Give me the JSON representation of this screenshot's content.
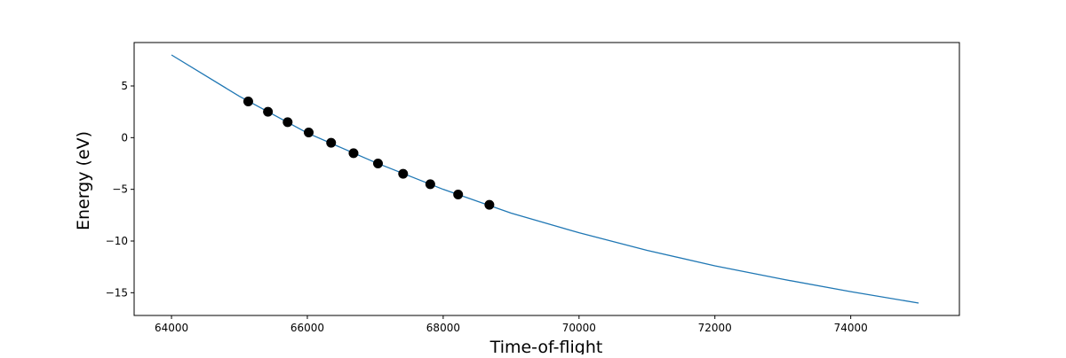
{
  "chart_data": {
    "type": "scatter",
    "title": "",
    "xlabel": "Time-of-flight",
    "ylabel": "Energy (eV)",
    "xlim": [
      63450,
      75600
    ],
    "ylim": [
      -17.2,
      9.2
    ],
    "xticks": [
      64000,
      66000,
      68000,
      70000,
      72000,
      74000
    ],
    "yticks": [
      5,
      0,
      -5,
      -10,
      -15
    ],
    "grid": false,
    "legend": "none",
    "colors": {
      "fit_line": "#1f77b4",
      "points": "#000000"
    },
    "series": [
      {
        "type": "scatter",
        "x": [
          65130,
          65420,
          65710,
          66020,
          66350,
          66680,
          67040,
          67410,
          67810,
          68220,
          68680
        ],
        "y": [
          3.5,
          2.5,
          1.5,
          0.5,
          -0.5,
          -1.5,
          -2.5,
          -3.5,
          -4.5,
          -5.5,
          -6.5
        ]
      },
      {
        "type": "line",
        "x": [
          64000,
          65000,
          66000,
          67000,
          68000,
          69000,
          70000,
          71000,
          72000,
          73000,
          74000,
          75000
        ],
        "y": [
          8.0,
          4.0,
          0.45,
          -2.4,
          -5.0,
          -7.3,
          -9.2,
          -10.9,
          -12.4,
          -13.7,
          -14.9,
          -16.0
        ]
      }
    ]
  }
}
